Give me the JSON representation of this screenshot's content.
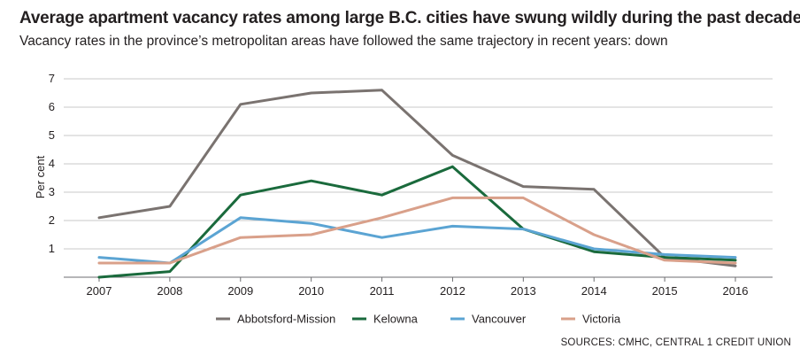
{
  "chart_data": {
    "type": "line",
    "title": "Average apartment vacancy rates among large B.C. cities have swung wildly during the past decade",
    "subtitle": "Vacancy rates in the province’s metropolitan areas have followed the same trajectory in recent years: down",
    "ylabel": "Per cent",
    "xlabel": "",
    "x": [
      "2007",
      "2008",
      "2009",
      "2010",
      "2011",
      "2012",
      "2013",
      "2014",
      "2015",
      "2016"
    ],
    "ylim": [
      0,
      7
    ],
    "yticks": [
      "1",
      "2",
      "3",
      "4",
      "5",
      "6",
      "7"
    ],
    "grid": true,
    "legend": "bottom",
    "series": [
      {
        "name": "Abbotsford-Mission",
        "color": "#7a7370",
        "values": [
          2.1,
          2.5,
          6.1,
          6.5,
          6.6,
          4.3,
          3.2,
          3.1,
          0.7,
          0.4
        ]
      },
      {
        "name": "Kelowna",
        "color": "#1a6a3c",
        "values": [
          0.0,
          0.2,
          2.9,
          3.4,
          2.9,
          3.9,
          1.7,
          0.9,
          0.7,
          0.6
        ]
      },
      {
        "name": "Vancouver",
        "color": "#5ba4d3",
        "values": [
          0.7,
          0.5,
          2.1,
          1.9,
          1.4,
          1.8,
          1.7,
          1.0,
          0.8,
          0.7
        ]
      },
      {
        "name": "Victoria",
        "color": "#d9a08a",
        "values": [
          0.5,
          0.5,
          1.4,
          1.5,
          2.1,
          2.8,
          2.8,
          1.5,
          0.6,
          0.5
        ]
      }
    ],
    "source": "SOURCES: CMHC, CENTRAL 1 CREDIT UNION"
  }
}
